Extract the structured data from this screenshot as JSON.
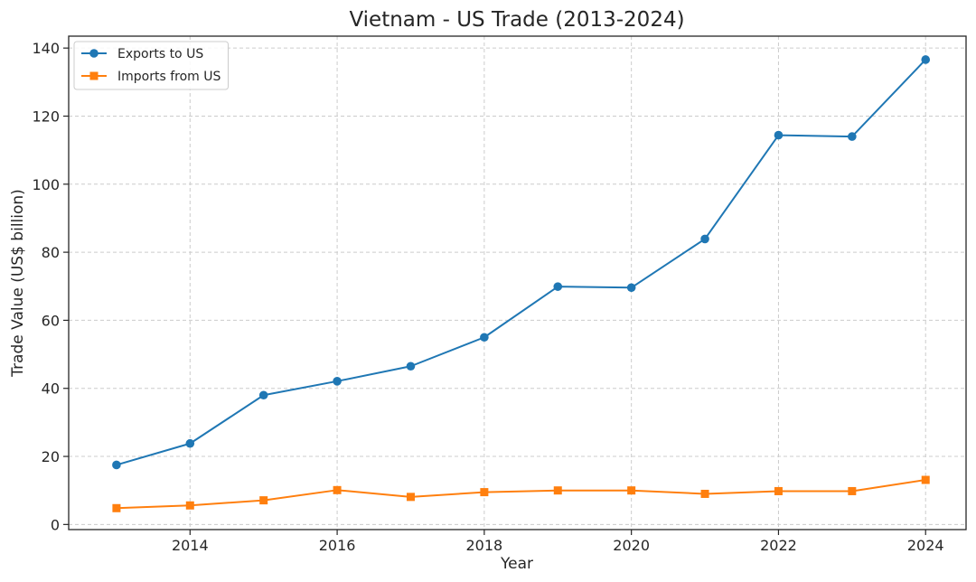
{
  "chart_data": {
    "type": "line",
    "title": "Vietnam - US Trade (2013-2024)",
    "xlabel": "Year",
    "ylabel": "Trade Value (US$ billion)",
    "x": [
      2013,
      2014,
      2015,
      2016,
      2017,
      2018,
      2019,
      2020,
      2021,
      2022,
      2023,
      2024
    ],
    "xlim": [
      2012.35,
      2024.55
    ],
    "ylim": [
      -1.5,
      143.5
    ],
    "xticks": [
      2014,
      2016,
      2018,
      2020,
      2022,
      2024
    ],
    "yticks": [
      0,
      20,
      40,
      60,
      80,
      100,
      120,
      140
    ],
    "grid": true,
    "legend_position": "top-left",
    "series": [
      {
        "name": "Exports to US",
        "color": "#1f77b4",
        "marker": "circle",
        "values": [
          17.5,
          23.8,
          38.0,
          42.1,
          46.5,
          55.0,
          69.9,
          69.6,
          83.9,
          114.4,
          114.0,
          136.6
        ]
      },
      {
        "name": "Imports from US",
        "color": "#ff7f0e",
        "marker": "square",
        "values": [
          4.8,
          5.6,
          7.1,
          10.1,
          8.1,
          9.5,
          10.0,
          10.0,
          9.0,
          9.8,
          9.8,
          13.1
        ]
      }
    ]
  }
}
